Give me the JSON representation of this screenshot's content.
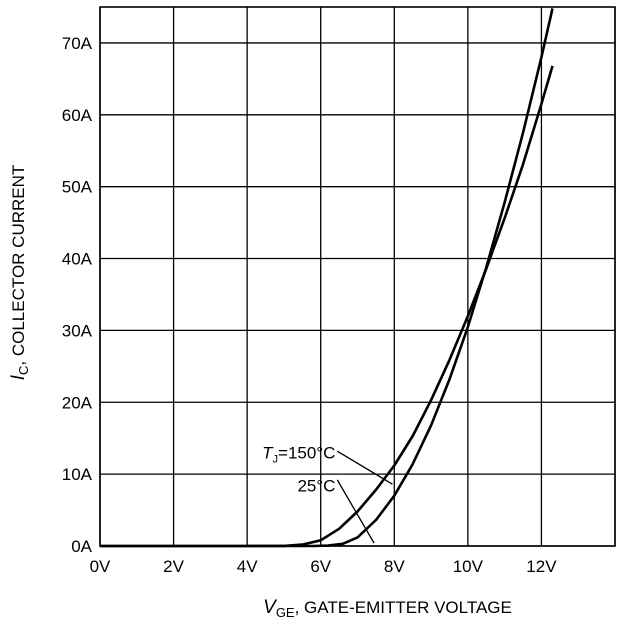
{
  "chart_data": {
    "type": "line",
    "title": "",
    "xlabel": {
      "symbol": "V",
      "subscript": "GE",
      "text": ", GATE-EMITTER VOLTAGE"
    },
    "ylabel": {
      "symbol": "I",
      "subscript": "C",
      "text": ", COLLECTOR CURRENT"
    },
    "xlim": [
      0,
      14
    ],
    "ylim": [
      0,
      75
    ],
    "grid": true,
    "x_ticks": [
      {
        "value": 0,
        "label": "0V"
      },
      {
        "value": 2,
        "label": "2V"
      },
      {
        "value": 4,
        "label": "4V"
      },
      {
        "value": 6,
        "label": "6V"
      },
      {
        "value": 8,
        "label": "8V"
      },
      {
        "value": 10,
        "label": "10V"
      },
      {
        "value": 12,
        "label": "12V"
      }
    ],
    "x_grid": [
      0,
      2,
      4,
      6,
      8,
      10,
      12,
      14
    ],
    "y_ticks": [
      {
        "value": 0,
        "label": "0A"
      },
      {
        "value": 10,
        "label": "10A"
      },
      {
        "value": 20,
        "label": "20A"
      },
      {
        "value": 30,
        "label": "30A"
      },
      {
        "value": 40,
        "label": "40A"
      },
      {
        "value": 50,
        "label": "50A"
      },
      {
        "value": 60,
        "label": "60A"
      },
      {
        "value": 70,
        "label": "70A"
      }
    ],
    "series": [
      {
        "name": "TJ=150°C",
        "label_parts": {
          "symbol": "T",
          "subscript": "J",
          "text": "=150°C"
        },
        "x": [
          0,
          4.0,
          5.0,
          5.5,
          6.0,
          6.5,
          7.0,
          7.5,
          8.0,
          8.5,
          9.0,
          9.5,
          10.0,
          10.5,
          11.0,
          11.5,
          12.0,
          12.3
        ],
        "y": [
          0,
          0,
          0.02,
          0.2,
          0.8,
          2.4,
          4.8,
          7.8,
          11.2,
          15.3,
          20.3,
          25.9,
          32.0,
          38.6,
          45.6,
          53.1,
          61.5,
          66.8
        ]
      },
      {
        "name": "25°C",
        "label_parts": {
          "symbol": "",
          "subscript": "",
          "text": "25°C"
        },
        "x": [
          0,
          5.8,
          6.2,
          6.6,
          7.0,
          7.5,
          8.0,
          8.5,
          9.0,
          9.5,
          10.0,
          10.5,
          11.0,
          11.5,
          12.0,
          12.3
        ],
        "y": [
          0,
          0,
          0.05,
          0.3,
          1.2,
          3.6,
          7.0,
          11.4,
          16.8,
          23.2,
          30.5,
          38.8,
          47.8,
          57.5,
          68.0,
          74.8
        ]
      }
    ]
  }
}
